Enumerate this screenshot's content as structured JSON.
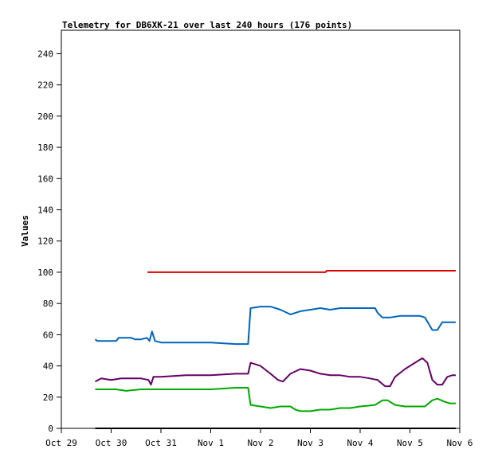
{
  "chart_data": {
    "type": "line",
    "title": "Telemetry for DB6XK-21 over last 240 hours (176 points)",
    "xlabel": "",
    "ylabel": "Values",
    "x_unit": "days since Oct 29 00:00",
    "xlim": [
      0,
      8
    ],
    "ylim": [
      0,
      255
    ],
    "x_ticks": [
      {
        "label": "Oct 29",
        "value": 0
      },
      {
        "label": "Oct 30",
        "value": 1
      },
      {
        "label": "Oct 31",
        "value": 2
      },
      {
        "label": "Nov 1",
        "value": 3
      },
      {
        "label": "Nov 2",
        "value": 4
      },
      {
        "label": "Nov 3",
        "value": 5
      },
      {
        "label": "Nov 4",
        "value": 6
      },
      {
        "label": "Nov 5",
        "value": 7
      },
      {
        "label": "Nov 6",
        "value": 8
      }
    ],
    "y_ticks": [
      0,
      20,
      40,
      60,
      80,
      100,
      120,
      140,
      160,
      180,
      200,
      220,
      240
    ],
    "grid": false,
    "legend": "none",
    "series": [
      {
        "color": "#dd0000",
        "points": [
          [
            1.73,
            100
          ],
          [
            3.0,
            100
          ],
          [
            4.0,
            100
          ],
          [
            5.3,
            100
          ],
          [
            5.33,
            101
          ],
          [
            6.0,
            101
          ],
          [
            7.0,
            101
          ],
          [
            7.92,
            101
          ]
        ]
      },
      {
        "color": "#0066bb",
        "points": [
          [
            0.68,
            57
          ],
          [
            0.72,
            56
          ],
          [
            0.9,
            56
          ],
          [
            1.1,
            56
          ],
          [
            1.15,
            58
          ],
          [
            1.4,
            58
          ],
          [
            1.48,
            57
          ],
          [
            1.6,
            57
          ],
          [
            1.72,
            58
          ],
          [
            1.77,
            56
          ],
          [
            1.82,
            62
          ],
          [
            1.88,
            56
          ],
          [
            2.0,
            55
          ],
          [
            2.5,
            55
          ],
          [
            3.0,
            55
          ],
          [
            3.5,
            54
          ],
          [
            3.7,
            54
          ],
          [
            3.75,
            54
          ],
          [
            3.8,
            77
          ],
          [
            4.0,
            78
          ],
          [
            4.2,
            78
          ],
          [
            4.4,
            76
          ],
          [
            4.6,
            73
          ],
          [
            4.8,
            75
          ],
          [
            5.0,
            76
          ],
          [
            5.2,
            77
          ],
          [
            5.4,
            76
          ],
          [
            5.6,
            77
          ],
          [
            5.8,
            77
          ],
          [
            6.0,
            77
          ],
          [
            6.3,
            77
          ],
          [
            6.35,
            74
          ],
          [
            6.45,
            71
          ],
          [
            6.6,
            71
          ],
          [
            6.8,
            72
          ],
          [
            7.0,
            72
          ],
          [
            7.2,
            72
          ],
          [
            7.3,
            71
          ],
          [
            7.45,
            63
          ],
          [
            7.55,
            63
          ],
          [
            7.65,
            68
          ],
          [
            7.75,
            68
          ],
          [
            7.92,
            68
          ]
        ]
      },
      {
        "color": "#660066",
        "points": [
          [
            0.68,
            30
          ],
          [
            0.8,
            32
          ],
          [
            1.0,
            31
          ],
          [
            1.2,
            32
          ],
          [
            1.4,
            32
          ],
          [
            1.6,
            32
          ],
          [
            1.75,
            31
          ],
          [
            1.8,
            28
          ],
          [
            1.85,
            33
          ],
          [
            2.0,
            33
          ],
          [
            2.5,
            34
          ],
          [
            3.0,
            34
          ],
          [
            3.5,
            35
          ],
          [
            3.7,
            35
          ],
          [
            3.75,
            35
          ],
          [
            3.8,
            42
          ],
          [
            4.0,
            40
          ],
          [
            4.2,
            35
          ],
          [
            4.35,
            31
          ],
          [
            4.45,
            30
          ],
          [
            4.6,
            35
          ],
          [
            4.8,
            38
          ],
          [
            5.0,
            37
          ],
          [
            5.2,
            35
          ],
          [
            5.4,
            34
          ],
          [
            5.6,
            34
          ],
          [
            5.8,
            33
          ],
          [
            6.0,
            33
          ],
          [
            6.2,
            32
          ],
          [
            6.35,
            31
          ],
          [
            6.5,
            27
          ],
          [
            6.6,
            27
          ],
          [
            6.7,
            33
          ],
          [
            6.9,
            38
          ],
          [
            7.1,
            42
          ],
          [
            7.25,
            45
          ],
          [
            7.35,
            42
          ],
          [
            7.45,
            31
          ],
          [
            7.55,
            28
          ],
          [
            7.65,
            28
          ],
          [
            7.75,
            33
          ],
          [
            7.85,
            34
          ],
          [
            7.92,
            34
          ]
        ]
      },
      {
        "color": "#00aa00",
        "points": [
          [
            0.68,
            25
          ],
          [
            0.9,
            25
          ],
          [
            1.1,
            25
          ],
          [
            1.3,
            24
          ],
          [
            1.6,
            25
          ],
          [
            2.0,
            25
          ],
          [
            2.5,
            25
          ],
          [
            3.0,
            25
          ],
          [
            3.5,
            26
          ],
          [
            3.75,
            26
          ],
          [
            3.8,
            15
          ],
          [
            4.0,
            14
          ],
          [
            4.2,
            13
          ],
          [
            4.4,
            14
          ],
          [
            4.6,
            14
          ],
          [
            4.7,
            12
          ],
          [
            4.8,
            11
          ],
          [
            5.0,
            11
          ],
          [
            5.2,
            12
          ],
          [
            5.4,
            12
          ],
          [
            5.6,
            13
          ],
          [
            5.8,
            13
          ],
          [
            6.0,
            14
          ],
          [
            6.3,
            15
          ],
          [
            6.45,
            18
          ],
          [
            6.55,
            18
          ],
          [
            6.7,
            15
          ],
          [
            6.9,
            14
          ],
          [
            7.1,
            14
          ],
          [
            7.3,
            14
          ],
          [
            7.45,
            18
          ],
          [
            7.55,
            19
          ],
          [
            7.7,
            17
          ],
          [
            7.8,
            16
          ],
          [
            7.92,
            16
          ]
        ]
      },
      {
        "color": "#000000",
        "points": [
          [
            0.68,
            0
          ],
          [
            7.92,
            0
          ]
        ]
      }
    ]
  }
}
